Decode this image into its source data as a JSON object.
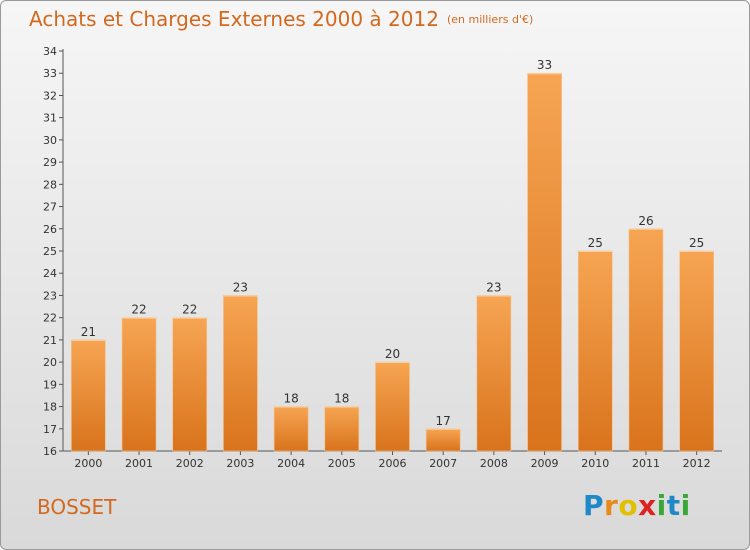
{
  "chart_data": {
    "type": "bar",
    "title": "Achats et Charges Externes 2000 à 2012",
    "subtitle": "(en milliers d'€)",
    "categories": [
      "2000",
      "2001",
      "2002",
      "2003",
      "2004",
      "2005",
      "2006",
      "2007",
      "2008",
      "2009",
      "2010",
      "2011",
      "2012"
    ],
    "values": [
      21,
      22,
      22,
      23,
      18,
      18,
      20,
      17,
      23,
      33,
      25,
      26,
      25
    ],
    "ylim": [
      16,
      34
    ],
    "yticks": [
      16,
      17,
      18,
      19,
      20,
      21,
      22,
      23,
      24,
      25,
      26,
      27,
      28,
      29,
      30,
      31,
      32,
      33,
      34
    ],
    "grid": false,
    "bar_color": "#f0a050",
    "bar_color_dark": "#d87420"
  },
  "commune": "BOSSET",
  "logo": "Proxiti"
}
